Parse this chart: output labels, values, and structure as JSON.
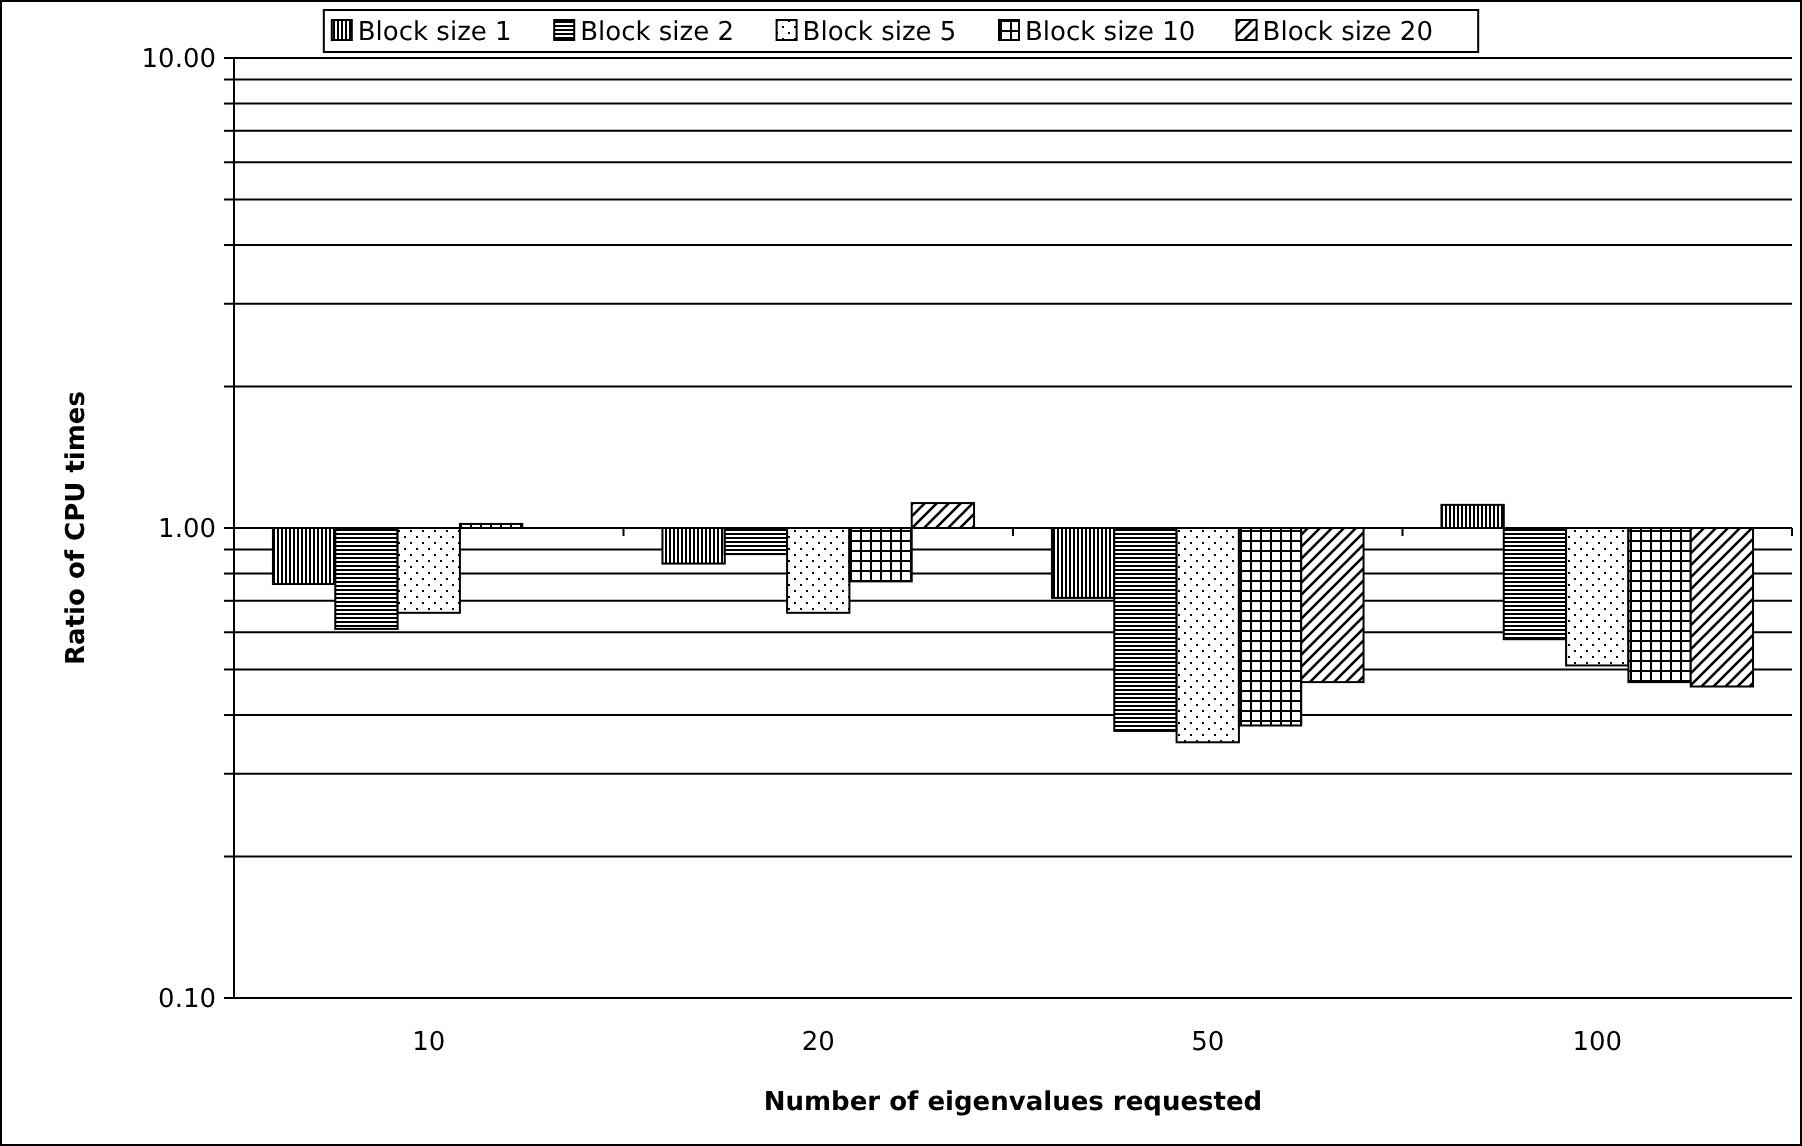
{
  "chart_data": {
    "type": "bar",
    "xlabel": "Number of eigenvalues requested",
    "ylabel": "Ratio of CPU times",
    "categories": [
      "10",
      "20",
      "50",
      "100"
    ],
    "series": [
      {
        "name": "Block size 1",
        "color": "#000000",
        "base": [
          1,
          1,
          1,
          1
        ],
        "values": [
          -0.24,
          -0.16,
          -0.29,
          0.12
        ]
      },
      {
        "name": "Block size 2",
        "color": "#000000",
        "base": [
          1,
          1,
          1,
          1
        ],
        "values": [
          -0.39,
          -0.12,
          -0.63,
          -0.42
        ]
      },
      {
        "name": "Block size 5",
        "color": "#000000",
        "base": [
          1,
          1,
          1,
          1
        ],
        "values": [
          -0.34,
          -0.34,
          -0.65,
          -0.49
        ]
      },
      {
        "name": "Block size 10",
        "color": "#000000",
        "base": [
          1,
          1,
          1,
          1
        ],
        "values": [
          0.02,
          -0.23,
          -0.62,
          -0.53
        ]
      },
      {
        "name": "Block size 20",
        "color": "#000000",
        "base": [
          null,
          1,
          1,
          1
        ],
        "values": [
          null,
          0.13,
          -0.53,
          -0.54
        ]
      }
    ],
    "log": true,
    "ylim": [
      0.1,
      10
    ],
    "yticks": [
      {
        "value": 0.1,
        "label": "0.10"
      },
      {
        "value": 0.2,
        "label": null
      },
      {
        "value": 0.3,
        "label": null
      },
      {
        "value": 0.4,
        "label": null
      },
      {
        "value": 0.5,
        "label": null
      },
      {
        "value": 0.6,
        "label": null
      },
      {
        "value": 0.7,
        "label": null
      },
      {
        "value": 0.8,
        "label": null
      },
      {
        "value": 0.9,
        "label": null
      },
      {
        "value": 1,
        "label": "1.00"
      },
      {
        "value": 2,
        "label": null
      },
      {
        "value": 3,
        "label": null
      },
      {
        "value": 4,
        "label": null
      },
      {
        "value": 5,
        "label": null
      },
      {
        "value": 6,
        "label": null
      },
      {
        "value": 7,
        "label": null
      },
      {
        "value": 8,
        "label": null
      },
      {
        "value": 9,
        "label": null
      },
      {
        "value": 10,
        "label": "10.00"
      }
    ],
    "grid": "y",
    "legend": "top"
  }
}
